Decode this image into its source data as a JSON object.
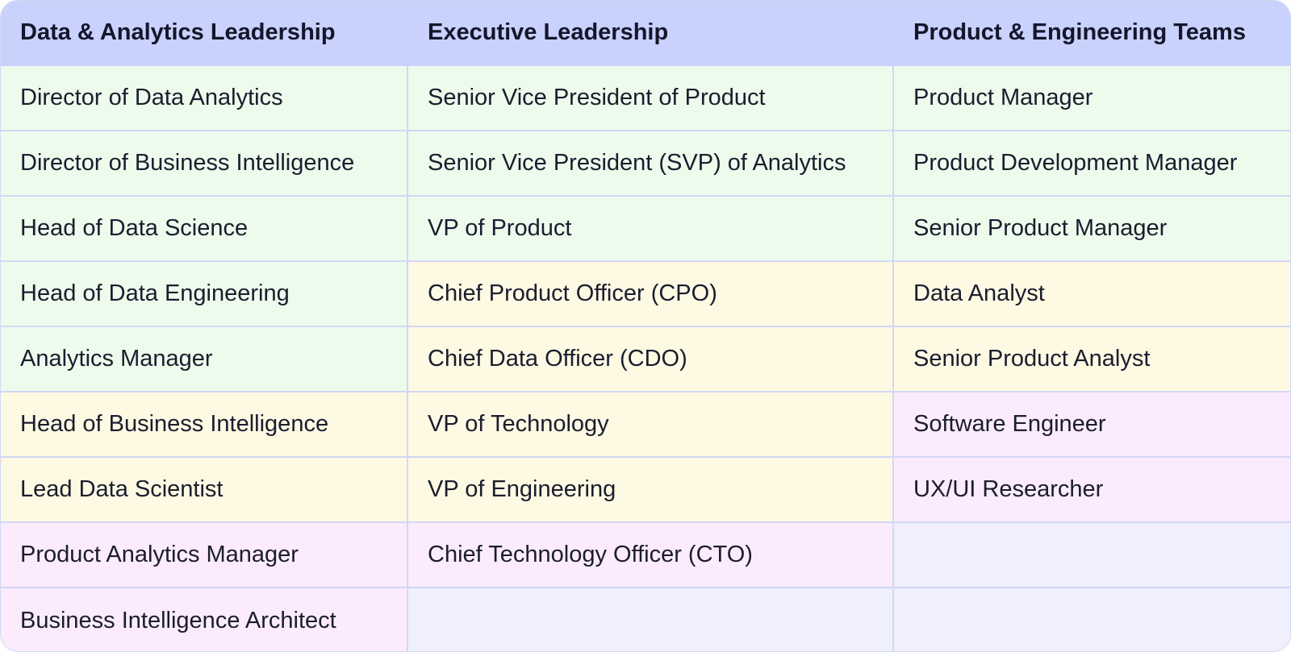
{
  "headers": [
    "Data & Analytics Leadership",
    "Executive Leadership",
    "Product & Engineering Teams"
  ],
  "colors": {
    "header": "#c9d1fd",
    "green": "#edfbec",
    "yellow": "#fdf9e3",
    "pink": "#fbebfd",
    "empty": "#eff0fb"
  },
  "rows": [
    [
      {
        "text": "Director of Data Analytics",
        "tint": "green"
      },
      {
        "text": "Senior Vice President of Product",
        "tint": "green"
      },
      {
        "text": "Product Manager",
        "tint": "green"
      }
    ],
    [
      {
        "text": "Director of Business Intelligence",
        "tint": "green"
      },
      {
        "text": "Senior Vice President (SVP) of Analytics",
        "tint": "green"
      },
      {
        "text": "Product Development Manager",
        "tint": "green"
      }
    ],
    [
      {
        "text": "Head of Data Science",
        "tint": "green"
      },
      {
        "text": "VP of Product",
        "tint": "green"
      },
      {
        "text": "Senior Product Manager",
        "tint": "green"
      }
    ],
    [
      {
        "text": "Head of Data Engineering",
        "tint": "green"
      },
      {
        "text": "Chief Product Officer (CPO)",
        "tint": "yellow"
      },
      {
        "text": "Data Analyst",
        "tint": "yellow"
      }
    ],
    [
      {
        "text": "Analytics Manager",
        "tint": "green"
      },
      {
        "text": "Chief Data Officer (CDO)",
        "tint": "yellow"
      },
      {
        "text": "Senior Product Analyst",
        "tint": "yellow"
      }
    ],
    [
      {
        "text": "Head of Business Intelligence",
        "tint": "yellow"
      },
      {
        "text": "VP of Technology",
        "tint": "yellow"
      },
      {
        "text": "Software Engineer",
        "tint": "pink"
      }
    ],
    [
      {
        "text": "Lead Data Scientist",
        "tint": "yellow"
      },
      {
        "text": "VP of Engineering",
        "tint": "yellow"
      },
      {
        "text": "UX/UI Researcher",
        "tint": "pink"
      }
    ],
    [
      {
        "text": "Product Analytics Manager",
        "tint": "pink"
      },
      {
        "text": "Chief Technology Officer (CTO)",
        "tint": "pink"
      },
      {
        "text": "",
        "tint": "empty"
      }
    ],
    [
      {
        "text": "Business Intelligence Architect",
        "tint": "pink"
      },
      {
        "text": "",
        "tint": "empty"
      },
      {
        "text": "",
        "tint": "empty"
      }
    ]
  ]
}
